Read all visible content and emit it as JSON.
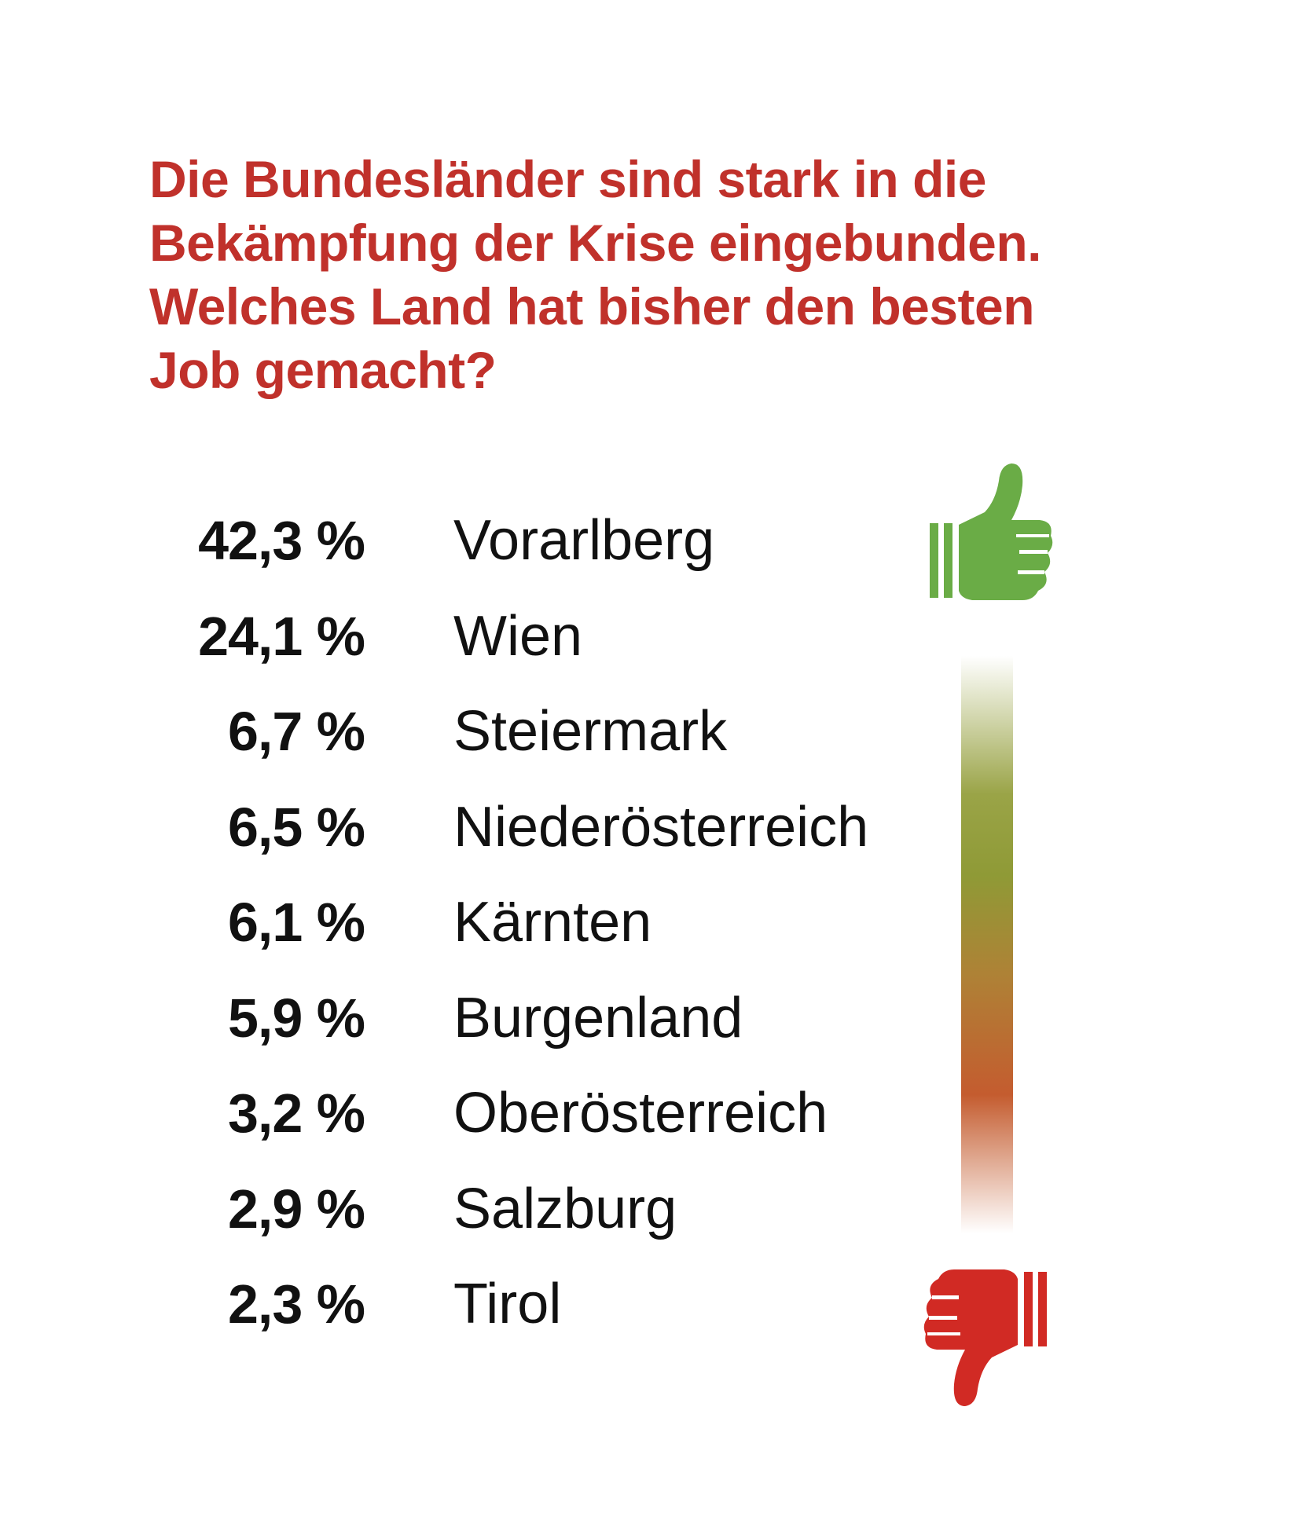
{
  "question": "Die Bundesländer sind stark in die Bekämpfung der Krise eingebunden. Welches Land hat bisher den besten Job gemacht?",
  "question_lines": [
    "Die Bundesländer sind stark in die",
    "Bekämpfung der Krise eingebunden.",
    "Welches Land hat bisher den besten",
    "Job gemacht?"
  ],
  "colors": {
    "title": "#c0312b",
    "text": "#111111",
    "thumb_up": "#6aac46",
    "thumb_down": "#d12a24",
    "gradient_top": "#ffffff",
    "gradient_green": "#8f9a36",
    "gradient_orange": "#c45c2f",
    "gradient_bottom": "#ffffff"
  },
  "icons": {
    "top": "thumbs-up-icon",
    "bottom": "thumbs-down-icon"
  },
  "chart_data": {
    "type": "table",
    "unit": "%",
    "rows": [
      {
        "value": 42.3,
        "label": "42,3 %",
        "name": "Vorarlberg"
      },
      {
        "value": 24.1,
        "label": "24,1 %",
        "name": "Wien"
      },
      {
        "value": 6.7,
        "label": "6,7 %",
        "name": "Steiermark"
      },
      {
        "value": 6.5,
        "label": "6,5 %",
        "name": "Niederösterreich"
      },
      {
        "value": 6.1,
        "label": "6,1 %",
        "name": "Kärnten"
      },
      {
        "value": 5.9,
        "label": "5,9 %",
        "name": "Burgenland"
      },
      {
        "value": 3.2,
        "label": "3,2 %",
        "name": "Oberösterreich"
      },
      {
        "value": 2.9,
        "label": "2,9 %",
        "name": "Salzburg"
      },
      {
        "value": 2.3,
        "label": "2,3 %",
        "name": "Tirol"
      }
    ]
  }
}
